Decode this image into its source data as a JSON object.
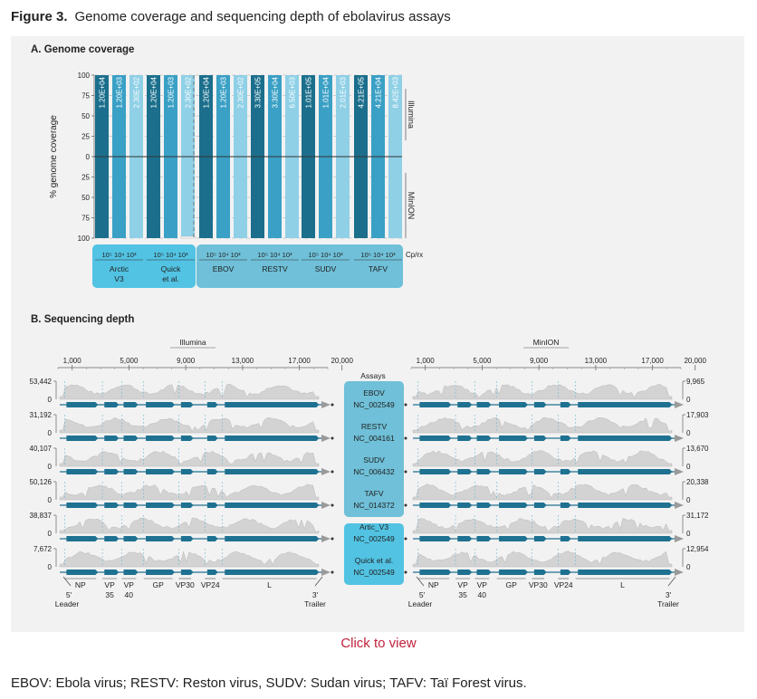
{
  "figure": {
    "number": "Figure 3.",
    "title": "Genome coverage and sequencing depth of ebolavirus assays",
    "link_text": "Click to view",
    "footnote": "EBOV: Ebola virus; RESTV: Reston virus, SUDV: Sudan virus; TAFV: Taï Forest virus."
  },
  "colors": {
    "dark": "#1b6f8c",
    "mid": "#3aa0c5",
    "light": "#8fd0e6",
    "box_left": "#52c3e3",
    "box_right": "#6fc0d8",
    "genome": "#1f7191",
    "depth_fill": "#d3d3d3",
    "panel": "#f2f2f2"
  },
  "chart_data": [
    {
      "type": "bar",
      "title": "A. Genome coverage",
      "ylabel": "% genome coverage",
      "ylim": [
        0,
        100
      ],
      "yticks": [
        "100",
        "75",
        "50",
        "25",
        "0",
        "25",
        "50",
        "75",
        "100"
      ],
      "x_label_right": "Cp/rx",
      "platforms": [
        "Illumina",
        "MinION"
      ],
      "copy_levels": [
        "10⁵",
        "10⁴",
        "10³"
      ],
      "groups": [
        {
          "name": "Arctic V3",
          "label_lines": [
            "Arctic",
            "V3"
          ],
          "box": "left",
          "illumina": [
            100,
            100,
            100
          ],
          "minion": [
            100,
            100,
            100
          ],
          "read_labels": [
            "1.20E+04",
            "1.20E+03",
            "2.30E+02"
          ]
        },
        {
          "name": "Quick et al.",
          "label_lines": [
            "Quick",
            "et al."
          ],
          "box": "left",
          "illumina": [
            100,
            100,
            100
          ],
          "minion": [
            100,
            100,
            98
          ],
          "read_labels": [
            "1.20E+04",
            "1.20E+03",
            "2.30E+02"
          ]
        },
        {
          "name": "EBOV",
          "label_lines": [
            "EBOV"
          ],
          "box": "right",
          "illumina": [
            100,
            100,
            100
          ],
          "minion": [
            100,
            100,
            100
          ],
          "read_labels": [
            "1.20E+04",
            "1.20E+03",
            "2.30E+02"
          ]
        },
        {
          "name": "RESTV",
          "label_lines": [
            "RESTV"
          ],
          "box": "right",
          "illumina": [
            100,
            100,
            100
          ],
          "minion": [
            100,
            100,
            100
          ],
          "read_labels": [
            "3.30E+05",
            "3.30E+04",
            "6.50E+03"
          ]
        },
        {
          "name": "SUDV",
          "label_lines": [
            "SUDV"
          ],
          "box": "right",
          "illumina": [
            100,
            100,
            100
          ],
          "minion": [
            100,
            100,
            100
          ],
          "read_labels": [
            "1.01E+05",
            "1.01E+04",
            "2.01E+03"
          ]
        },
        {
          "name": "TAFV",
          "label_lines": [
            "TAFV"
          ],
          "box": "right",
          "illumina": [
            100,
            100,
            100
          ],
          "minion": [
            100,
            100,
            100
          ],
          "read_labels": [
            "4.21E+05",
            "4.21E+04",
            "8.42E+03"
          ]
        }
      ]
    },
    {
      "type": "area",
      "title": "B. Sequencing depth",
      "platforms": [
        "Illumina",
        "MinION"
      ],
      "xticks": [
        "1,000",
        "5,000",
        "9,000",
        "13,000",
        "17,000",
        "20,000"
      ],
      "xtick_values": [
        1000,
        5000,
        9000,
        13000,
        17000,
        20000
      ],
      "xlim": [
        0,
        19000
      ],
      "assays_header": "Assays",
      "rows": [
        {
          "assay": "EBOV",
          "reference": "NC_002549",
          "illumina_max": "53,442",
          "minion_max": "9,965",
          "min": "0"
        },
        {
          "assay": "RESTV",
          "reference": "NC_004161",
          "illumina_max": "31,192",
          "minion_max": "17,903",
          "min": "0"
        },
        {
          "assay": "SUDV",
          "reference": "NC_006432",
          "illumina_max": "40,107",
          "minion_max": "13,670",
          "min": "0"
        },
        {
          "assay": "TAFV",
          "reference": "NC_014372",
          "illumina_max": "50,126",
          "minion_max": "20,338",
          "min": "0"
        },
        {
          "assay": "Artic_V3",
          "reference": "NC_002549",
          "illumina_max": "38,837",
          "minion_max": "31,172",
          "min": "0"
        },
        {
          "assay": "Quick et al.",
          "reference": "NC_002549",
          "illumina_max": "7,672",
          "minion_max": "12,954",
          "min": "0"
        }
      ],
      "genes": [
        {
          "label": "NP",
          "start": 470,
          "end": 2690
        },
        {
          "label": "VP 35",
          "label_lines": [
            "VP",
            "35"
          ],
          "start": 3130,
          "end": 4150
        },
        {
          "label": "VP 40",
          "label_lines": [
            "VP",
            "40"
          ],
          "start": 4480,
          "end": 5500
        },
        {
          "label": "GP",
          "start": 6040,
          "end": 8070
        },
        {
          "label": "VP30",
          "start": 8510,
          "end": 9380
        },
        {
          "label": "VP24",
          "start": 10350,
          "end": 11100
        },
        {
          "label": "L",
          "start": 11580,
          "end": 18200
        }
      ],
      "end_labels": {
        "left_num": "5'",
        "left": "Leader",
        "right_num": "3'",
        "right": "Trailer"
      }
    }
  ]
}
